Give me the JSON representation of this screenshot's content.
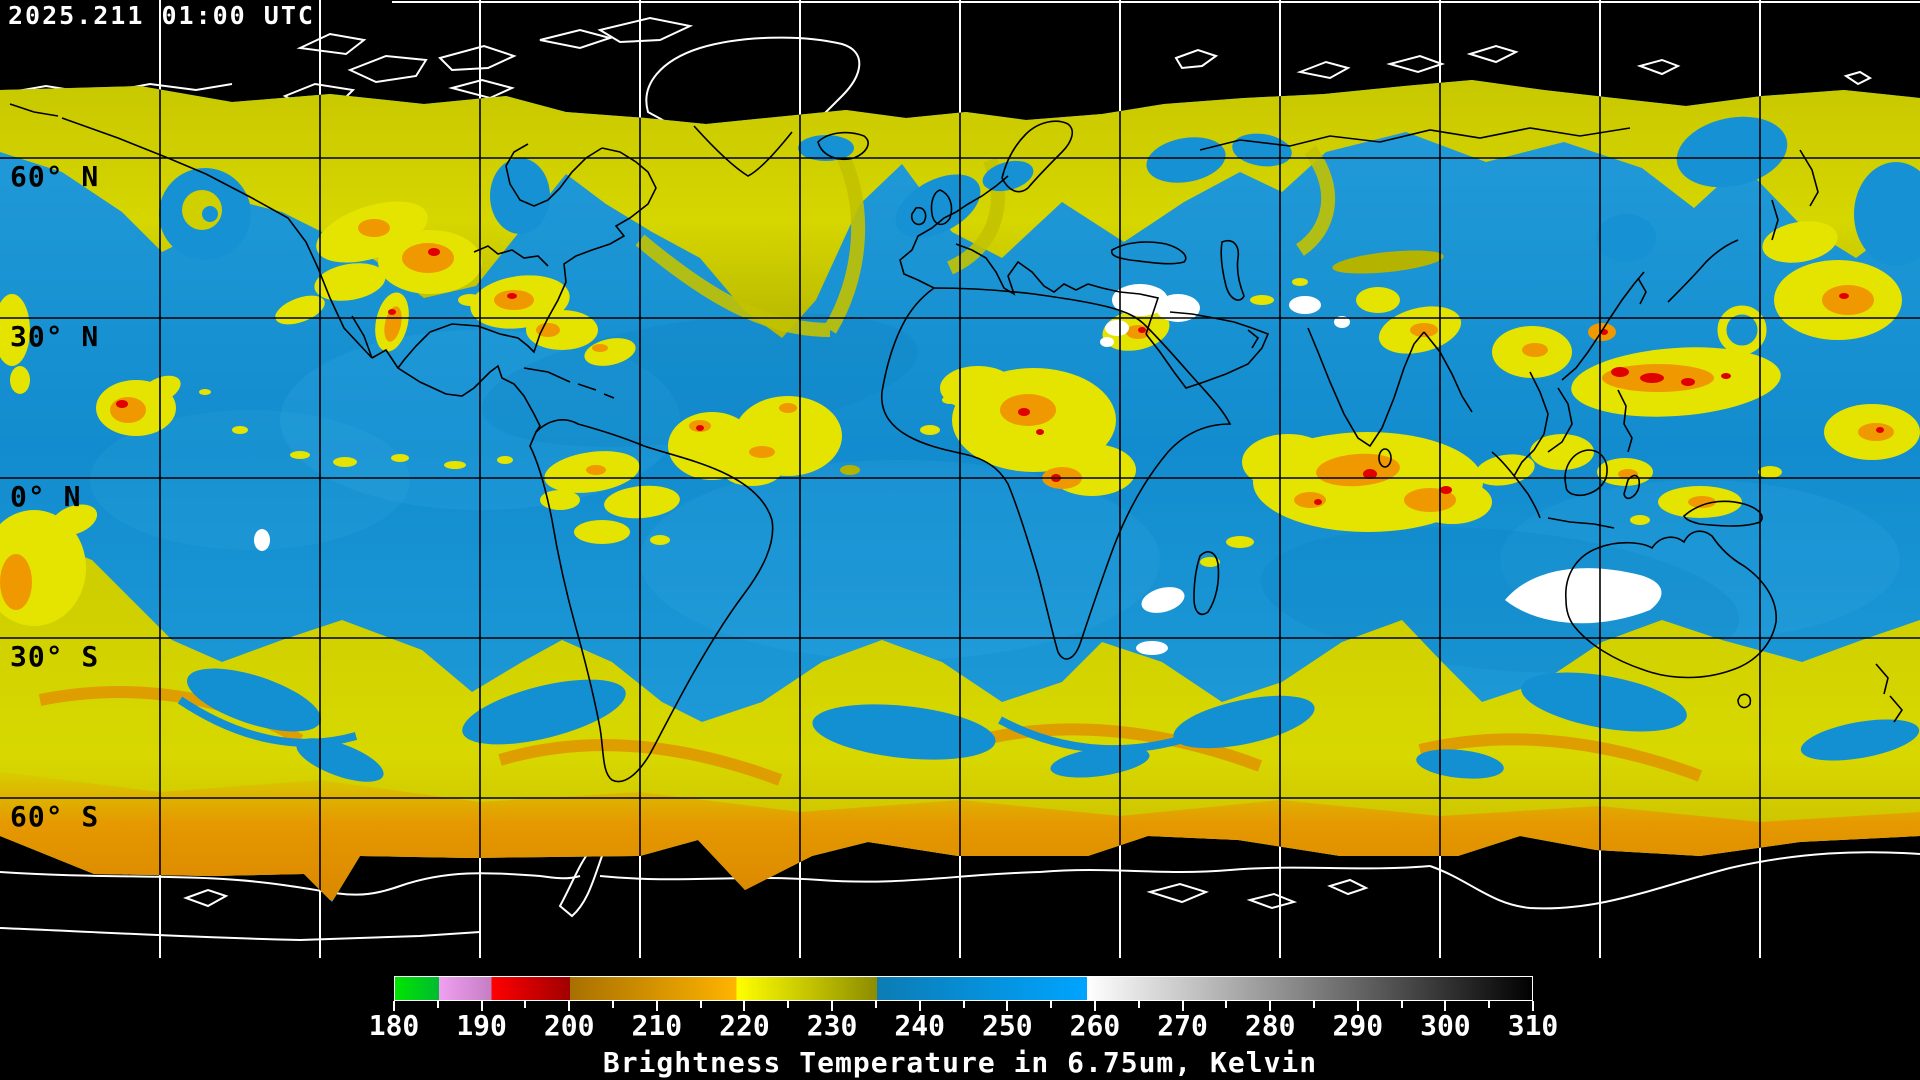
{
  "header": {
    "timestamp": "2025.211 01:00 UTC"
  },
  "map": {
    "latitude_labels": [
      "60° N",
      "30° N",
      "0° N",
      "30° S",
      "60° S"
    ],
    "grid": {
      "latitude_interval_deg": 30,
      "longitude_interval_deg": 30
    },
    "palette_legend": {
      "ocean_clear_air": "#1592d4",
      "mid_moisture_yellow": "#d8d800",
      "olive_moisture": "#aeae00",
      "high_cloud_orange": "#e89400",
      "deep_convection_red": "#e00000",
      "coldest_cloud_white": "#ffffff",
      "no_data_background": "#000000",
      "coastline_over_data": "#000000",
      "coastline_over_space": "#ffffff"
    }
  },
  "colorbar": {
    "title": "Brightness Temperature in 6.75um, Kelvin",
    "min": 180,
    "max": 310,
    "tick_step": 10,
    "minor_tick_step": 5,
    "tick_labels": [
      "180",
      "190",
      "200",
      "210",
      "220",
      "230",
      "240",
      "250",
      "260",
      "270",
      "280",
      "290",
      "300",
      "310"
    ],
    "segments": [
      {
        "name": "green",
        "from": 180,
        "to": 185,
        "color_start": "#00e400",
        "color_end": "#00bc30"
      },
      {
        "name": "violet",
        "from": 185,
        "to": 191,
        "color_start": "#f0a0f0",
        "color_end": "#c47ec4"
      },
      {
        "name": "red",
        "from": 191,
        "to": 200,
        "color_start": "#ff0000",
        "color_end": "#a00000"
      },
      {
        "name": "orange",
        "from": 200,
        "to": 219,
        "color_start": "#a87000",
        "color_end": "#ffb400"
      },
      {
        "name": "yellow-olive",
        "from": 219,
        "to": 235,
        "color_start": "#ffff00",
        "color_end": "#8c8c00"
      },
      {
        "name": "blue",
        "from": 235,
        "to": 259,
        "color_start": "#0c7cb4",
        "color_end": "#00a4ff"
      },
      {
        "name": "grayscale",
        "from": 259,
        "to": 310,
        "color_start": "#ffffff",
        "color_end": "#000000"
      }
    ]
  }
}
